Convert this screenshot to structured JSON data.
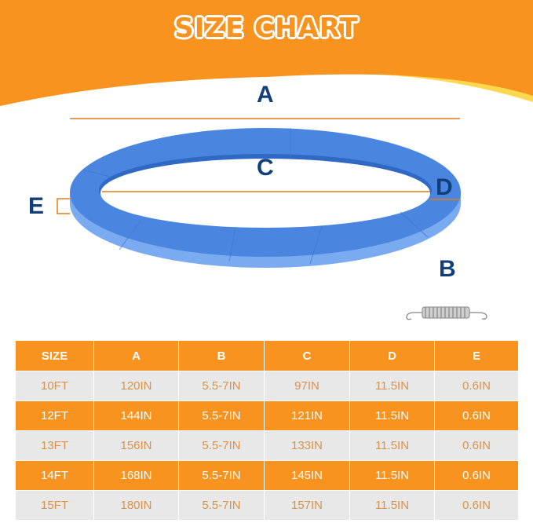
{
  "title": "SIZE CHART",
  "colors": {
    "orange": "#f7931e",
    "yellow": "#fdd84e",
    "ring_blue": "#4a86e0",
    "label_navy": "#123f7a"
  },
  "labels": {
    "a": "A",
    "b": "B",
    "c": "C",
    "d": "D",
    "e": "E"
  },
  "table": {
    "headers": [
      "SIZE",
      "A",
      "B",
      "C",
      "D",
      "E"
    ],
    "rows": [
      [
        "10FT",
        "120IN",
        "5.5-7IN",
        "97IN",
        "11.5IN",
        "0.6IN"
      ],
      [
        "12FT",
        "144IN",
        "5.5-7IN",
        "121IN",
        "11.5IN",
        "0.6IN"
      ],
      [
        "13FT",
        "156IN",
        "5.5-7IN",
        "133IN",
        "11.5IN",
        "0.6IN"
      ],
      [
        "14FT",
        "168IN",
        "5.5-7IN",
        "145IN",
        "11.5IN",
        "0.6IN"
      ],
      [
        "15FT",
        "180IN",
        "5.5-7IN",
        "157IN",
        "11.5IN",
        "0.6IN"
      ]
    ]
  }
}
